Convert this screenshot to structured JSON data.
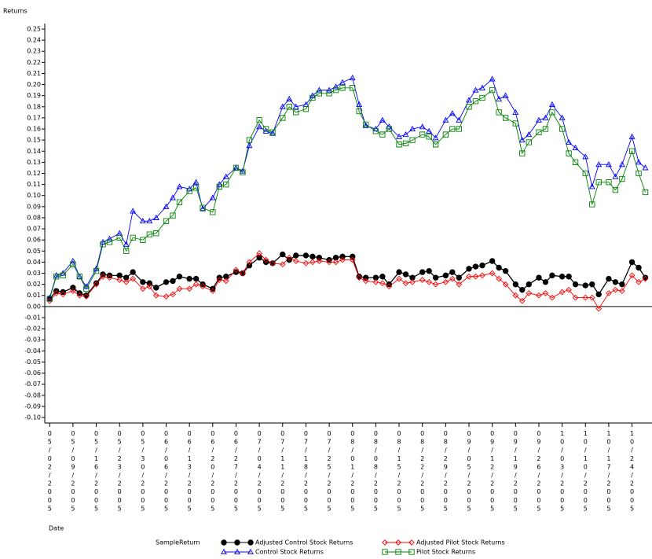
{
  "chart_data": {
    "type": "line",
    "y_label": "Returns",
    "x_label": "Date",
    "legend_title": "SampleReturn",
    "x": [
      "05/02/2005",
      "05/04/2005",
      "05/06/2005",
      "05/09/2005",
      "05/11/2005",
      "05/13/2005",
      "05/16/2005",
      "05/18/2005",
      "05/20/2005",
      "05/23/2005",
      "05/25/2005",
      "05/27/2005",
      "05/30/2005",
      "06/01/2005",
      "06/03/2005",
      "06/06/2005",
      "06/08/2005",
      "06/10/2005",
      "06/13/2005",
      "06/15/2005",
      "06/17/2005",
      "06/20/2005",
      "06/22/2005",
      "06/24/2005",
      "06/27/2005",
      "06/29/2005",
      "07/01/2005",
      "07/04/2005",
      "07/06/2005",
      "07/08/2005",
      "07/11/2005",
      "07/13/2005",
      "07/15/2005",
      "07/18/2005",
      "07/20/2005",
      "07/22/2005",
      "07/25/2005",
      "07/27/2005",
      "07/29/2005",
      "08/01/2005",
      "08/03/2005",
      "08/05/2005",
      "08/08/2005",
      "08/10/2005",
      "08/12/2005",
      "08/15/2005",
      "08/17/2005",
      "08/19/2005",
      "08/22/2005",
      "08/24/2005",
      "08/26/2005",
      "08/29/2005",
      "08/31/2005",
      "09/02/2005",
      "09/05/2005",
      "09/07/2005",
      "09/09/2005",
      "09/12/2005",
      "09/14/2005",
      "09/16/2005",
      "09/19/2005",
      "09/21/2005",
      "09/23/2005",
      "09/26/2005",
      "09/28/2005",
      "09/30/2005",
      "10/03/2005",
      "10/05/2005",
      "10/07/2005",
      "10/10/2005",
      "10/12/2005",
      "10/14/2005",
      "10/17/2005",
      "10/19/2005",
      "10/21/2005",
      "10/24/2005",
      "10/26/2005",
      "10/28/2005"
    ],
    "series": [
      {
        "name": "Adjusted Control Stock Returns",
        "color": "#000000",
        "marker": "circle",
        "values": [
          0.007,
          0.014,
          0.013,
          0.017,
          0.012,
          0.01,
          0.021,
          0.029,
          0.028,
          0.028,
          0.026,
          0.031,
          0.022,
          0.021,
          0.017,
          0.022,
          0.023,
          0.027,
          0.025,
          0.025,
          0.02,
          0.016,
          0.026,
          0.027,
          0.031,
          0.03,
          0.037,
          0.044,
          0.04,
          0.039,
          0.047,
          0.042,
          0.046,
          0.046,
          0.045,
          0.044,
          0.042,
          0.044,
          0.045,
          0.045,
          0.027,
          0.026,
          0.026,
          0.027,
          0.02,
          0.031,
          0.029,
          0.026,
          0.031,
          0.032,
          0.026,
          0.028,
          0.031,
          0.026,
          0.034,
          0.036,
          0.037,
          0.041,
          0.035,
          0.032,
          0.02,
          0.015,
          0.02,
          0.026,
          0.022,
          0.028,
          0.027,
          0.027,
          0.02,
          0.019,
          0.02,
          0.011,
          0.025,
          0.022,
          0.02,
          0.04,
          0.035,
          0.026
        ]
      },
      {
        "name": "Control Stock Returns",
        "color": "#0000ff",
        "marker": "triangle",
        "values": [
          0.008,
          0.028,
          0.03,
          0.041,
          0.027,
          0.018,
          0.034,
          0.058,
          0.061,
          0.066,
          0.056,
          0.086,
          0.077,
          0.077,
          0.08,
          0.09,
          0.098,
          0.108,
          0.106,
          0.112,
          0.088,
          0.098,
          0.11,
          0.117,
          0.125,
          0.122,
          0.145,
          0.162,
          0.158,
          0.156,
          0.18,
          0.187,
          0.18,
          0.182,
          0.19,
          0.195,
          0.195,
          0.198,
          0.202,
          0.206,
          0.182,
          0.163,
          0.16,
          0.168,
          0.162,
          0.153,
          0.155,
          0.16,
          0.162,
          0.158,
          0.152,
          0.168,
          0.174,
          0.168,
          0.186,
          0.195,
          0.197,
          0.205,
          0.187,
          0.19,
          0.175,
          0.15,
          0.155,
          0.168,
          0.17,
          0.182,
          0.17,
          0.148,
          0.143,
          0.135,
          0.108,
          0.128,
          0.128,
          0.117,
          0.128,
          0.153,
          0.13,
          0.125
        ]
      },
      {
        "name": "Adjusted Pilot Stock Returns",
        "color": "#ff0000",
        "marker": "diamond",
        "values": [
          0.005,
          0.012,
          0.011,
          0.014,
          0.01,
          0.009,
          0.02,
          0.027,
          0.026,
          0.024,
          0.022,
          0.025,
          0.016,
          0.018,
          0.01,
          0.009,
          0.011,
          0.016,
          0.016,
          0.02,
          0.018,
          0.014,
          0.024,
          0.023,
          0.033,
          0.03,
          0.04,
          0.048,
          0.042,
          0.039,
          0.038,
          0.044,
          0.041,
          0.039,
          0.04,
          0.041,
          0.04,
          0.04,
          0.042,
          0.042,
          0.026,
          0.023,
          0.022,
          0.021,
          0.018,
          0.025,
          0.021,
          0.022,
          0.024,
          0.022,
          0.02,
          0.022,
          0.025,
          0.02,
          0.027,
          0.027,
          0.028,
          0.03,
          0.025,
          0.02,
          0.01,
          0.005,
          0.012,
          0.01,
          0.012,
          0.008,
          0.013,
          0.015,
          0.008,
          0.008,
          0.008,
          -0.002,
          0.012,
          0.015,
          0.014,
          0.028,
          0.022,
          0.025
        ]
      },
      {
        "name": "Pilot Stock Returns",
        "color": "#008000",
        "marker": "square",
        "values": [
          0.007,
          0.027,
          0.028,
          0.038,
          0.027,
          0.016,
          0.032,
          0.056,
          0.058,
          0.062,
          0.05,
          0.062,
          0.06,
          0.065,
          0.066,
          0.077,
          0.082,
          0.094,
          0.104,
          0.107,
          0.089,
          0.085,
          0.108,
          0.11,
          0.125,
          0.121,
          0.15,
          0.168,
          0.16,
          0.157,
          0.17,
          0.18,
          0.175,
          0.178,
          0.188,
          0.192,
          0.192,
          0.195,
          0.197,
          0.197,
          0.176,
          0.164,
          0.158,
          0.155,
          0.16,
          0.146,
          0.147,
          0.15,
          0.155,
          0.153,
          0.146,
          0.155,
          0.16,
          0.16,
          0.18,
          0.185,
          0.188,
          0.195,
          0.175,
          0.17,
          0.165,
          0.138,
          0.148,
          0.157,
          0.16,
          0.175,
          0.16,
          0.138,
          0.13,
          0.12,
          0.092,
          0.112,
          0.112,
          0.105,
          0.115,
          0.14,
          0.12,
          0.103
        ]
      }
    ],
    "xlim": [
      "05/01/2005",
      "10/30/2005"
    ],
    "xticks": [
      "05/02/2005",
      "05/09/2005",
      "05/16/2005",
      "05/23/2005",
      "05/30/2005",
      "06/06/2005",
      "06/13/2005",
      "06/20/2005",
      "06/27/2005",
      "07/04/2005",
      "07/11/2005",
      "07/18/2005",
      "07/25/2005",
      "08/01/2005",
      "08/08/2005",
      "08/15/2005",
      "08/22/2005",
      "08/29/2005",
      "09/05/2005",
      "09/12/2005",
      "09/19/2005",
      "09/26/2005",
      "10/03/2005",
      "10/10/2005",
      "10/17/2005",
      "10/24/2005"
    ],
    "ylim": [
      -0.1,
      0.25
    ],
    "yticks": [
      {
        "value": -0.1,
        "label": "-0.10"
      },
      -0.09,
      -0.08,
      -0.07,
      -0.06,
      -0.05,
      -0.04,
      -0.03,
      -0.02,
      -0.01,
      {
        "value": 0,
        "label": "0.00"
      },
      0.01,
      0.02,
      0.03,
      0.04,
      0.05,
      0.06,
      0.07,
      0.08,
      0.09,
      {
        "value": 0.1,
        "label": "0.10"
      },
      0.11,
      0.12,
      0.13,
      0.14,
      0.15,
      0.16,
      0.17,
      0.18,
      0.19,
      {
        "value": 0.2,
        "label": "0.20"
      },
      0.21,
      0.22,
      0.23,
      0.24,
      0.25
    ],
    "zero_line": true
  }
}
